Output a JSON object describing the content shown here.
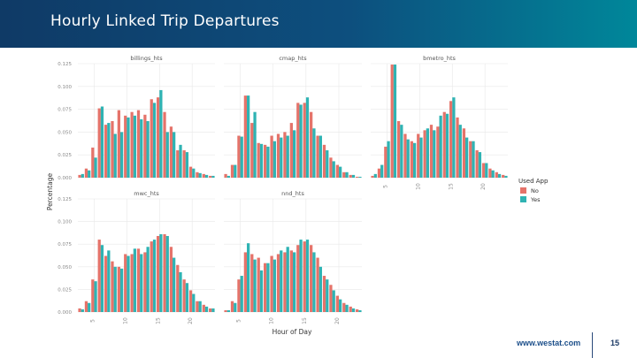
{
  "header": {
    "title": "Hourly Linked Trip Departures"
  },
  "footer": {
    "logo": "www.westat.com",
    "page_number": "15"
  },
  "colors": {
    "no": "#e5736a",
    "yes": "#2fb3b3",
    "grid": "#e8e8e8",
    "axis_text": "#8a8a8a"
  },
  "chart_data": {
    "type": "bar",
    "ylabel": "Percentage",
    "xlabel": "Hour of Day",
    "ylim": [
      0,
      0.125
    ],
    "y_ticks": [
      "0.000",
      "0.025",
      "0.050",
      "0.075",
      "0.100",
      "0.125"
    ],
    "x_ticks": [
      "5",
      "10",
      "15",
      "20"
    ],
    "legend": {
      "title": "Used App",
      "entries": [
        "No",
        "Yes"
      ],
      "position": "right"
    },
    "hours": [
      3,
      4,
      5,
      6,
      7,
      8,
      9,
      10,
      11,
      12,
      13,
      14,
      15,
      16,
      17,
      18,
      19,
      20,
      21,
      22,
      23
    ],
    "panels": [
      {
        "title": "billings_hts",
        "series": [
          {
            "name": "No",
            "values": [
              0.003,
              0.01,
              0.033,
              0.076,
              0.058,
              0.062,
              0.074,
              0.068,
              0.072,
              0.074,
              0.069,
              0.086,
              0.088,
              0.072,
              0.056,
              0.03,
              0.03,
              0.012,
              0.006,
              0.004,
              0.002
            ]
          },
          {
            "name": "Yes",
            "values": [
              0.004,
              0.008,
              0.022,
              0.078,
              0.06,
              0.048,
              0.05,
              0.066,
              0.068,
              0.064,
              0.062,
              0.082,
              0.096,
              0.05,
              0.05,
              0.036,
              0.028,
              0.01,
              0.005,
              0.003,
              0.002
            ]
          }
        ]
      },
      {
        "title": "cmap_hts",
        "series": [
          {
            "name": "No",
            "values": [
              0.004,
              0.014,
              0.046,
              0.09,
              0.06,
              0.038,
              0.036,
              0.046,
              0.048,
              0.05,
              0.06,
              0.082,
              0.082,
              0.072,
              0.046,
              0.036,
              0.022,
              0.014,
              0.006,
              0.003,
              0.001
            ]
          },
          {
            "name": "Yes",
            "values": [
              0.002,
              0.014,
              0.045,
              0.09,
              0.072,
              0.037,
              0.034,
              0.04,
              0.044,
              0.046,
              0.052,
              0.08,
              0.088,
              0.054,
              0.046,
              0.03,
              0.018,
              0.012,
              0.006,
              0.003,
              0.001
            ]
          }
        ]
      },
      {
        "title": "bmetro_hts",
        "series": [
          {
            "name": "No",
            "values": [
              0.002,
              0.01,
              0.034,
              0.124,
              0.062,
              0.048,
              0.04,
              0.048,
              0.052,
              0.058,
              0.056,
              0.072,
              0.084,
              0.066,
              0.054,
              0.04,
              0.03,
              0.016,
              0.01,
              0.006,
              0.003
            ]
          },
          {
            "name": "Yes",
            "values": [
              0.004,
              0.014,
              0.04,
              0.124,
              0.058,
              0.042,
              0.038,
              0.044,
              0.054,
              0.052,
              0.068,
              0.07,
              0.088,
              0.058,
              0.044,
              0.04,
              0.028,
              0.016,
              0.008,
              0.004,
              0.002
            ]
          }
        ]
      },
      {
        "title": "mwc_hts",
        "series": [
          {
            "name": "No",
            "values": [
              0.004,
              0.012,
              0.036,
              0.08,
              0.062,
              0.056,
              0.05,
              0.064,
              0.064,
              0.07,
              0.066,
              0.078,
              0.084,
              0.086,
              0.072,
              0.052,
              0.036,
              0.024,
              0.012,
              0.008,
              0.004
            ]
          },
          {
            "name": "Yes",
            "values": [
              0.003,
              0.01,
              0.034,
              0.074,
              0.068,
              0.05,
              0.048,
              0.062,
              0.07,
              0.064,
              0.072,
              0.08,
              0.086,
              0.084,
              0.06,
              0.044,
              0.032,
              0.02,
              0.012,
              0.006,
              0.004
            ]
          }
        ]
      },
      {
        "title": "nnd_hts",
        "series": [
          {
            "name": "No",
            "values": [
              0.002,
              0.012,
              0.036,
              0.066,
              0.064,
              0.06,
              0.054,
              0.062,
              0.064,
              0.066,
              0.068,
              0.074,
              0.078,
              0.074,
              0.06,
              0.04,
              0.03,
              0.018,
              0.01,
              0.006,
              0.003
            ]
          },
          {
            "name": "Yes",
            "values": [
              0.002,
              0.01,
              0.04,
              0.076,
              0.058,
              0.046,
              0.054,
              0.058,
              0.068,
              0.072,
              0.066,
              0.08,
              0.08,
              0.066,
              0.05,
              0.036,
              0.024,
              0.014,
              0.008,
              0.004,
              0.002
            ]
          }
        ]
      }
    ]
  }
}
